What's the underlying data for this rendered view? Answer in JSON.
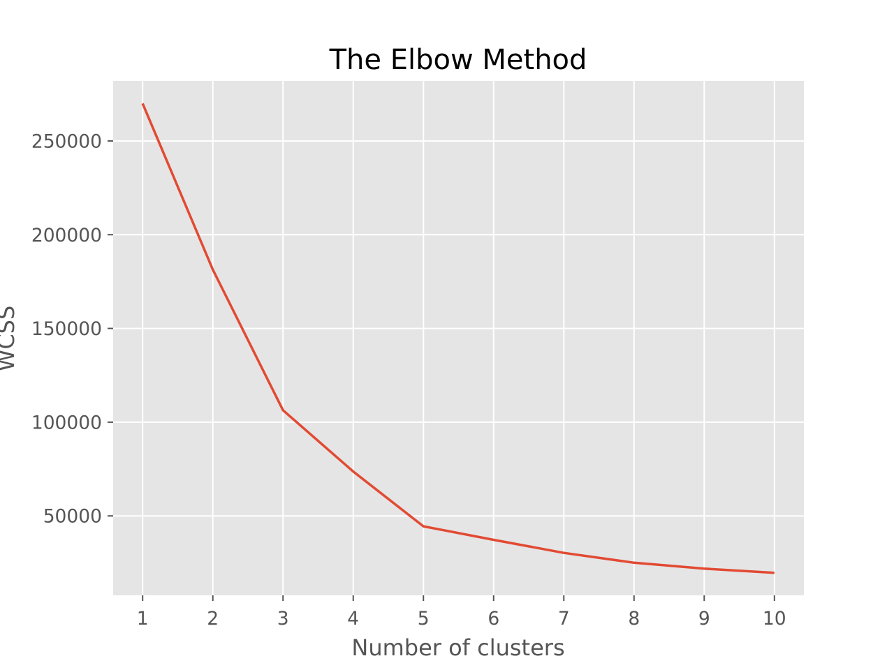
{
  "chart_data": {
    "type": "line",
    "title": "The Elbow Method",
    "xlabel": "Number of clusters",
    "ylabel": "WCSS",
    "x": [
      1,
      2,
      3,
      4,
      5,
      6,
      7,
      8,
      9,
      10
    ],
    "series": [
      {
        "values": [
          269981,
          181363,
          106348,
          73679,
          44448,
          37233,
          30259,
          25011,
          21850,
          19657
        ]
      }
    ],
    "xticks": [
      1,
      2,
      3,
      4,
      5,
      6,
      7,
      8,
      9,
      10
    ],
    "yticks": [
      50000,
      100000,
      150000,
      200000,
      250000
    ],
    "xtick_labels": [
      "1",
      "2",
      "3",
      "4",
      "5",
      "6",
      "7",
      "8",
      "9",
      "10"
    ],
    "ytick_labels": [
      "50000",
      "100000",
      "150000",
      "200000",
      "250000"
    ],
    "xlim": [
      0.58,
      10.42
    ],
    "ylim": [
      7641,
      281997
    ],
    "grid": true,
    "style": "ggplot",
    "colors": {
      "line": "#E24A33",
      "plot_background": "#E5E5E5",
      "grid": "#FFFFFF",
      "tick": "#555555"
    }
  }
}
